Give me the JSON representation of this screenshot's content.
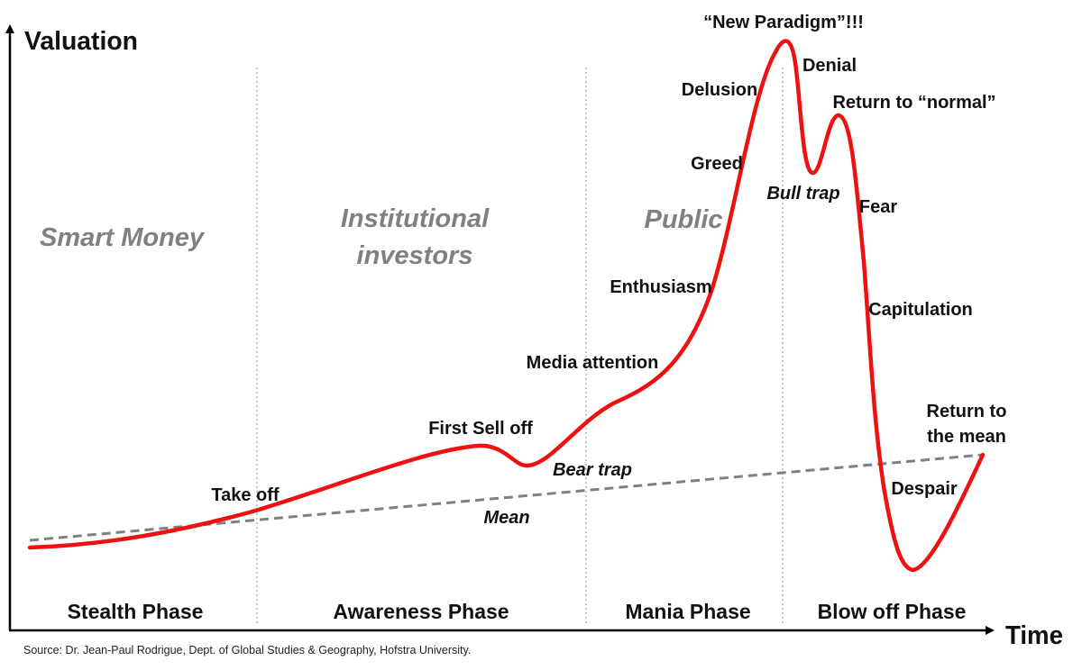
{
  "axes": {
    "y_label": "Valuation",
    "x_label": "Time"
  },
  "investor_groups": [
    "Smart Money",
    "Institutional investors",
    "Public"
  ],
  "phases": [
    "Stealth Phase",
    "Awareness Phase",
    "Mania Phase",
    "Blow off Phase"
  ],
  "curve_labels": {
    "take_off": "Take off",
    "first_sell_off": "First Sell off",
    "bear_trap": "Bear trap",
    "media_attention": "Media attention",
    "enthusiasm": "Enthusiasm",
    "greed": "Greed",
    "delusion": "Delusion",
    "new_paradigm": "“New Paradigm”!!!",
    "denial": "Denial",
    "bull_trap": "Bull trap",
    "return_to_normal": "Return to “normal”",
    "fear": "Fear",
    "capitulation": "Capitulation",
    "despair": "Despair",
    "return_to_mean_1": "Return to",
    "return_to_mean_2": "the mean",
    "mean": "Mean"
  },
  "source": "Source: Dr. Jean-Paul Rodrigue, Dept. of Global Studies & Geography, Hofstra University.",
  "colors": {
    "curve": "#ee1111",
    "mean_line": "#808080",
    "group_text": "#808080",
    "divider": "#c8c8c8",
    "axis": "#000000"
  }
}
